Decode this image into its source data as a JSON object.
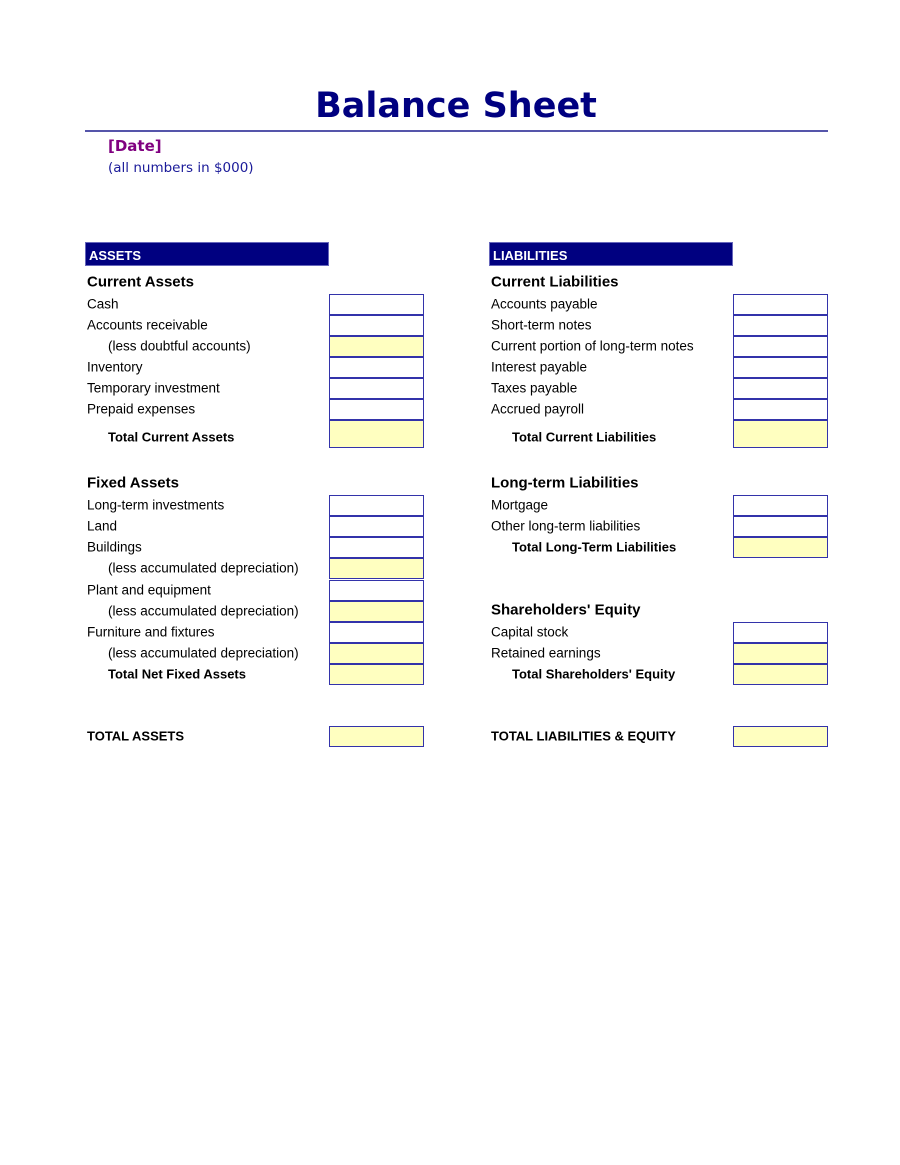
{
  "title": "Balance Sheet",
  "date": "[Date]",
  "units_note": "(all numbers in $000)",
  "colors": {
    "header_bg": "#000080",
    "title": "#000080",
    "date": "#800080",
    "total_fill": "#ffffc0",
    "box_border": "#3333aa"
  },
  "assets": {
    "header": "ASSETS",
    "rows": [
      {
        "label": "Current Assets",
        "type": "head"
      },
      {
        "label": "Cash",
        "type": "item"
      },
      {
        "label": "Accounts receivable",
        "type": "item"
      },
      {
        "label": "(less doubtful accounts)",
        "type": "sub"
      },
      {
        "label": "Inventory",
        "type": "item"
      },
      {
        "label": "Temporary investment",
        "type": "item"
      },
      {
        "label": "Prepaid expenses",
        "type": "item"
      },
      {
        "label": "Total Current Assets",
        "type": "total"
      },
      {
        "label": "Fixed Assets",
        "type": "head"
      },
      {
        "label": "Long-term investments",
        "type": "item"
      },
      {
        "label": "Land",
        "type": "item"
      },
      {
        "label": "Buildings",
        "type": "item"
      },
      {
        "label": "(less accumulated depreciation)",
        "type": "sub"
      },
      {
        "label": "Plant and equipment",
        "type": "item"
      },
      {
        "label": "(less accumulated depreciation)",
        "type": "sub"
      },
      {
        "label": "Furniture and fixtures",
        "type": "item"
      },
      {
        "label": "(less accumulated depreciation)",
        "type": "sub"
      },
      {
        "label": "Total Net Fixed Assets",
        "type": "total"
      },
      {
        "label": "TOTAL ASSETS",
        "type": "grand"
      }
    ]
  },
  "liabilities": {
    "header": "LIABILITIES",
    "rows": [
      {
        "label": "Current Liabilities",
        "type": "head"
      },
      {
        "label": "Accounts payable",
        "type": "item"
      },
      {
        "label": "Short-term notes",
        "type": "item"
      },
      {
        "label": "Current portion of long-term notes",
        "type": "item"
      },
      {
        "label": "Interest payable",
        "type": "item"
      },
      {
        "label": "Taxes payable",
        "type": "item"
      },
      {
        "label": "Accrued payroll",
        "type": "item"
      },
      {
        "label": "Total Current Liabilities",
        "type": "total"
      },
      {
        "label": "Long-term Liabilities",
        "type": "head"
      },
      {
        "label": "Mortgage",
        "type": "item"
      },
      {
        "label": "Other long-term liabilities",
        "type": "item"
      },
      {
        "label": "Total Long-Term Liabilities",
        "type": "total"
      },
      {
        "label": "Shareholders' Equity",
        "type": "head"
      },
      {
        "label": "Capital stock",
        "type": "item"
      },
      {
        "label": "Retained earnings",
        "type": "item",
        "fill": "yellow"
      },
      {
        "label": "Total Shareholders' Equity",
        "type": "total"
      },
      {
        "label": "TOTAL LIABILITIES & EQUITY",
        "type": "grand"
      }
    ]
  }
}
